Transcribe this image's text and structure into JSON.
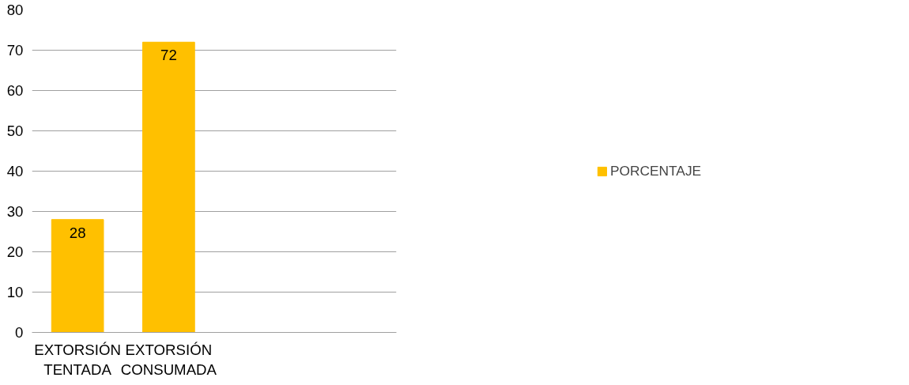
{
  "chart_data": {
    "type": "bar",
    "categories": [
      "EXTORSIÓN TENTADA",
      "EXTORSIÓN CONSUMADA",
      null,
      null
    ],
    "series": [
      {
        "name": "PORCENTAJE",
        "color": "#ffc000",
        "values": [
          28,
          72,
          null,
          null
        ]
      }
    ],
    "ylim": [
      0,
      80
    ],
    "yticks": [
      0,
      10,
      20,
      30,
      40,
      50,
      60,
      70,
      80
    ],
    "grid": "y",
    "legend": "right",
    "data_labels": true
  }
}
